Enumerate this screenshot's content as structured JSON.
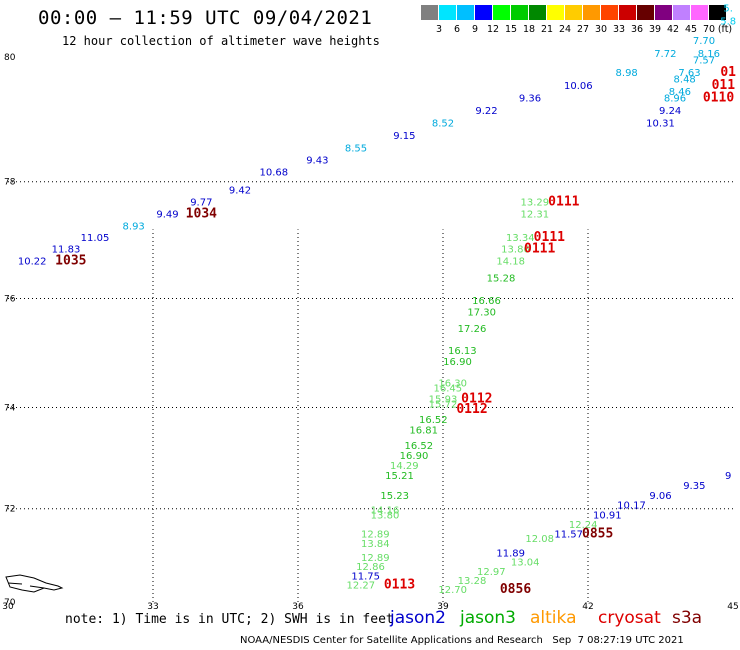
{
  "title": "00:00 – 11:59 UTC 09/04/2021",
  "subtitle": "12 hour collection of altimeter wave heights",
  "scale": {
    "unit": "(ft)",
    "colors": [
      "#808080",
      "#00e5ff",
      "#00bfff",
      "#0000ff",
      "#00ff00",
      "#00cc00",
      "#008800",
      "#ffff00",
      "#ffcc00",
      "#ff9900",
      "#ff4400",
      "#cc0000",
      "#660000",
      "#800080",
      "#c080ff",
      "#ff66ff",
      "#000000"
    ],
    "labels": [
      "3",
      "6",
      "9",
      "12",
      "15",
      "18",
      "21",
      "24",
      "27",
      "30",
      "33",
      "36",
      "39",
      "42",
      "45",
      "70"
    ]
  },
  "axes": {
    "x_ticks": [
      "30",
      "33",
      "36",
      "39",
      "42",
      "45"
    ],
    "y_ticks": [
      "70",
      "72",
      "74",
      "76",
      "78",
      "80"
    ]
  },
  "chart_data": {
    "type": "scatter",
    "x_unit": "longitude (deg)",
    "y_unit": "latitude (deg)",
    "xlim": [
      30,
      45
    ],
    "ylim": [
      70,
      80
    ],
    "grid": true,
    "legend": "bottom",
    "labels": [
      {
        "lon": 30.5,
        "lat": 76.6,
        "text": "10.22",
        "c": "#0000cc"
      },
      {
        "lon": 31.2,
        "lat": 76.8,
        "text": "11.83",
        "c": "#0000cc"
      },
      {
        "lon": 31.3,
        "lat": 76.6,
        "text": "1035",
        "c": "#800000",
        "big": true
      },
      {
        "lon": 31.8,
        "lat": 77.0,
        "text": "11.05",
        "c": "#0000cc"
      },
      {
        "lon": 32.6,
        "lat": 77.2,
        "text": "8.93",
        "c": "#00aadd"
      },
      {
        "lon": 33.3,
        "lat": 77.4,
        "text": "9.49",
        "c": "#0000cc"
      },
      {
        "lon": 34.0,
        "lat": 77.6,
        "text": "9.77",
        "c": "#0000cc"
      },
      {
        "lon": 34.0,
        "lat": 77.4,
        "text": "1034",
        "c": "#800000",
        "big": true
      },
      {
        "lon": 34.8,
        "lat": 77.8,
        "text": "9.42",
        "c": "#0000cc"
      },
      {
        "lon": 35.5,
        "lat": 78.1,
        "text": "10.68",
        "c": "#0000cc"
      },
      {
        "lon": 36.4,
        "lat": 78.3,
        "text": "9.43",
        "c": "#0000cc"
      },
      {
        "lon": 37.2,
        "lat": 78.5,
        "text": "8.55",
        "c": "#00aadd"
      },
      {
        "lon": 38.2,
        "lat": 78.7,
        "text": "9.15",
        "c": "#0000cc"
      },
      {
        "lon": 39.0,
        "lat": 78.9,
        "text": "8.52",
        "c": "#00aadd"
      },
      {
        "lon": 39.9,
        "lat": 79.1,
        "text": "9.22",
        "c": "#0000cc"
      },
      {
        "lon": 40.8,
        "lat": 79.3,
        "text": "9.36",
        "c": "#0000cc"
      },
      {
        "lon": 41.8,
        "lat": 79.5,
        "text": "10.06",
        "c": "#0000cc"
      },
      {
        "lon": 42.8,
        "lat": 79.7,
        "text": "8.98",
        "c": "#00aadd"
      },
      {
        "lon": 43.6,
        "lat": 80.0,
        "text": "7.72",
        "c": "#00aadd"
      },
      {
        "lon": 44.4,
        "lat": 80.2,
        "text": "7.70",
        "c": "#00aadd"
      },
      {
        "lon": 44.5,
        "lat": 80.0,
        "text": "8.16",
        "c": "#00aadd"
      },
      {
        "lon": 44.4,
        "lat": 79.9,
        "text": "7.57",
        "c": "#00aadd"
      },
      {
        "lon": 44.1,
        "lat": 79.7,
        "text": "7.63",
        "c": "#00aadd"
      },
      {
        "lon": 44.0,
        "lat": 79.6,
        "text": "8.48",
        "c": "#00aadd"
      },
      {
        "lon": 43.9,
        "lat": 79.4,
        "text": "8.46",
        "c": "#00aadd"
      },
      {
        "lon": 43.8,
        "lat": 79.3,
        "text": "8.96",
        "c": "#00aadd"
      },
      {
        "lon": 43.7,
        "lat": 79.1,
        "text": "9.24",
        "c": "#0000cc"
      },
      {
        "lon": 43.5,
        "lat": 78.9,
        "text": "10.31",
        "c": "#0000cc"
      },
      {
        "lon": 44.9,
        "lat": 80.7,
        "text": "5.",
        "c": "#00ccee"
      },
      {
        "lon": 44.9,
        "lat": 80.5,
        "text": "5.8",
        "c": "#00ccee"
      },
      {
        "lon": 44.9,
        "lat": 79.7,
        "text": "01",
        "c": "#dd0000",
        "big": true
      },
      {
        "lon": 44.8,
        "lat": 79.5,
        "text": "011",
        "c": "#dd0000",
        "big": true
      },
      {
        "lon": 44.7,
        "lat": 79.3,
        "text": "0110",
        "c": "#dd0000",
        "big": true
      },
      {
        "lon": 40.9,
        "lat": 77.6,
        "text": "13.29",
        "c": "#66dd66"
      },
      {
        "lon": 40.9,
        "lat": 77.4,
        "text": "12.31",
        "c": "#66dd66"
      },
      {
        "lon": 41.5,
        "lat": 77.6,
        "text": "0111",
        "c": "#dd0000",
        "big": true
      },
      {
        "lon": 40.6,
        "lat": 77.0,
        "text": "13.34",
        "c": "#66dd66"
      },
      {
        "lon": 40.5,
        "lat": 76.8,
        "text": "13.86",
        "c": "#66dd66"
      },
      {
        "lon": 40.4,
        "lat": 76.6,
        "text": "14.18",
        "c": "#66dd66"
      },
      {
        "lon": 41.2,
        "lat": 77.0,
        "text": "0111",
        "c": "#dd0000",
        "big": true
      },
      {
        "lon": 41.0,
        "lat": 76.8,
        "text": "0111",
        "c": "#dd0000",
        "big": true
      },
      {
        "lon": 40.2,
        "lat": 76.3,
        "text": "15.28",
        "c": "#22bb22"
      },
      {
        "lon": 39.9,
        "lat": 75.9,
        "text": "16.66",
        "c": "#22bb22"
      },
      {
        "lon": 39.8,
        "lat": 75.7,
        "text": "17.30",
        "c": "#22bb22"
      },
      {
        "lon": 39.6,
        "lat": 75.4,
        "text": "17.26",
        "c": "#22bb22"
      },
      {
        "lon": 39.4,
        "lat": 75.0,
        "text": "16.13",
        "c": "#22bb22"
      },
      {
        "lon": 39.3,
        "lat": 74.8,
        "text": "16.90",
        "c": "#22bb22"
      },
      {
        "lon": 39.2,
        "lat": 74.4,
        "text": "16.30",
        "c": "#66dd66"
      },
      {
        "lon": 39.1,
        "lat": 74.3,
        "text": "16.45",
        "c": "#66dd66"
      },
      {
        "lon": 39.0,
        "lat": 74.1,
        "text": "15.93",
        "c": "#66dd66"
      },
      {
        "lon": 39.0,
        "lat": 74.0,
        "text": "15.72",
        "c": "#66dd66"
      },
      {
        "lon": 39.7,
        "lat": 74.1,
        "text": "0112",
        "c": "#dd0000",
        "big": true
      },
      {
        "lon": 39.6,
        "lat": 73.9,
        "text": "0112",
        "c": "#dd0000",
        "big": true
      },
      {
        "lon": 38.8,
        "lat": 73.7,
        "text": "16.52",
        "c": "#22bb22"
      },
      {
        "lon": 38.6,
        "lat": 73.5,
        "text": "16.81",
        "c": "#22bb22"
      },
      {
        "lon": 38.5,
        "lat": 73.2,
        "text": "16.52",
        "c": "#22bb22"
      },
      {
        "lon": 38.4,
        "lat": 73.0,
        "text": "16.90",
        "c": "#22bb22"
      },
      {
        "lon": 38.2,
        "lat": 72.8,
        "text": "14.29",
        "c": "#66dd66"
      },
      {
        "lon": 38.1,
        "lat": 72.6,
        "text": "15.21",
        "c": "#22bb22"
      },
      {
        "lon": 38.0,
        "lat": 72.2,
        "text": "15.23",
        "c": "#22bb22"
      },
      {
        "lon": 37.8,
        "lat": 71.9,
        "text": "14.16",
        "c": "#66dd66"
      },
      {
        "lon": 37.8,
        "lat": 71.8,
        "text": "13.80",
        "c": "#66dd66"
      },
      {
        "lon": 37.6,
        "lat": 71.4,
        "text": "12.89",
        "c": "#66dd66"
      },
      {
        "lon": 37.6,
        "lat": 71.2,
        "text": "13.84",
        "c": "#66dd66"
      },
      {
        "lon": 37.6,
        "lat": 70.9,
        "text": "12.89",
        "c": "#66dd66"
      },
      {
        "lon": 37.5,
        "lat": 70.7,
        "text": "12.86",
        "c": "#66dd66"
      },
      {
        "lon": 37.4,
        "lat": 70.5,
        "text": "11.75",
        "c": "#0000cc"
      },
      {
        "lon": 37.3,
        "lat": 70.3,
        "text": "12.27",
        "c": "#66dd66"
      },
      {
        "lon": 38.1,
        "lat": 70.3,
        "text": "0113",
        "c": "#dd0000",
        "big": true
      },
      {
        "lon": 39.2,
        "lat": 70.2,
        "text": "12.70",
        "c": "#66dd66"
      },
      {
        "lon": 39.6,
        "lat": 70.4,
        "text": "13.28",
        "c": "#66dd66"
      },
      {
        "lon": 40.0,
        "lat": 70.6,
        "text": "12.97",
        "c": "#66dd66"
      },
      {
        "lon": 40.5,
        "lat": 70.2,
        "text": "0856",
        "c": "#800000",
        "big": true
      },
      {
        "lon": 40.7,
        "lat": 70.8,
        "text": "13.04",
        "c": "#66dd66"
      },
      {
        "lon": 40.4,
        "lat": 71.0,
        "text": "11.89",
        "c": "#0000cc"
      },
      {
        "lon": 41.0,
        "lat": 71.3,
        "text": "12.08",
        "c": "#66dd66"
      },
      {
        "lon": 41.6,
        "lat": 71.4,
        "text": "11.57",
        "c": "#0000cc"
      },
      {
        "lon": 41.9,
        "lat": 71.6,
        "text": "12.24",
        "c": "#66dd66"
      },
      {
        "lon": 42.2,
        "lat": 71.4,
        "text": "0855",
        "c": "#800000",
        "big": true
      },
      {
        "lon": 42.4,
        "lat": 71.8,
        "text": "10.91",
        "c": "#0000cc"
      },
      {
        "lon": 42.9,
        "lat": 72.0,
        "text": "10.17",
        "c": "#0000cc"
      },
      {
        "lon": 43.5,
        "lat": 72.2,
        "text": "9.06",
        "c": "#0000cc"
      },
      {
        "lon": 44.2,
        "lat": 72.4,
        "text": "9.35",
        "c": "#0000cc"
      },
      {
        "lon": 44.9,
        "lat": 72.6,
        "text": "9",
        "c": "#0000cc"
      }
    ]
  },
  "note": "note: 1) Time is in UTC; 2) SWH is in feet",
  "legend": [
    {
      "name": "jason2",
      "color": "#0000cc"
    },
    {
      "name": "jason3",
      "color": "#00aa00"
    },
    {
      "name": "altika",
      "color": "#ff9900"
    },
    {
      "name": "cryosat",
      "color": "#dd0000"
    },
    {
      "name": "s3a",
      "color": "#800000"
    }
  ],
  "footer": "NOAA/NESDIS Center for Satellite Applications and Research   Sep  7 08:27:19 UTC 2021"
}
